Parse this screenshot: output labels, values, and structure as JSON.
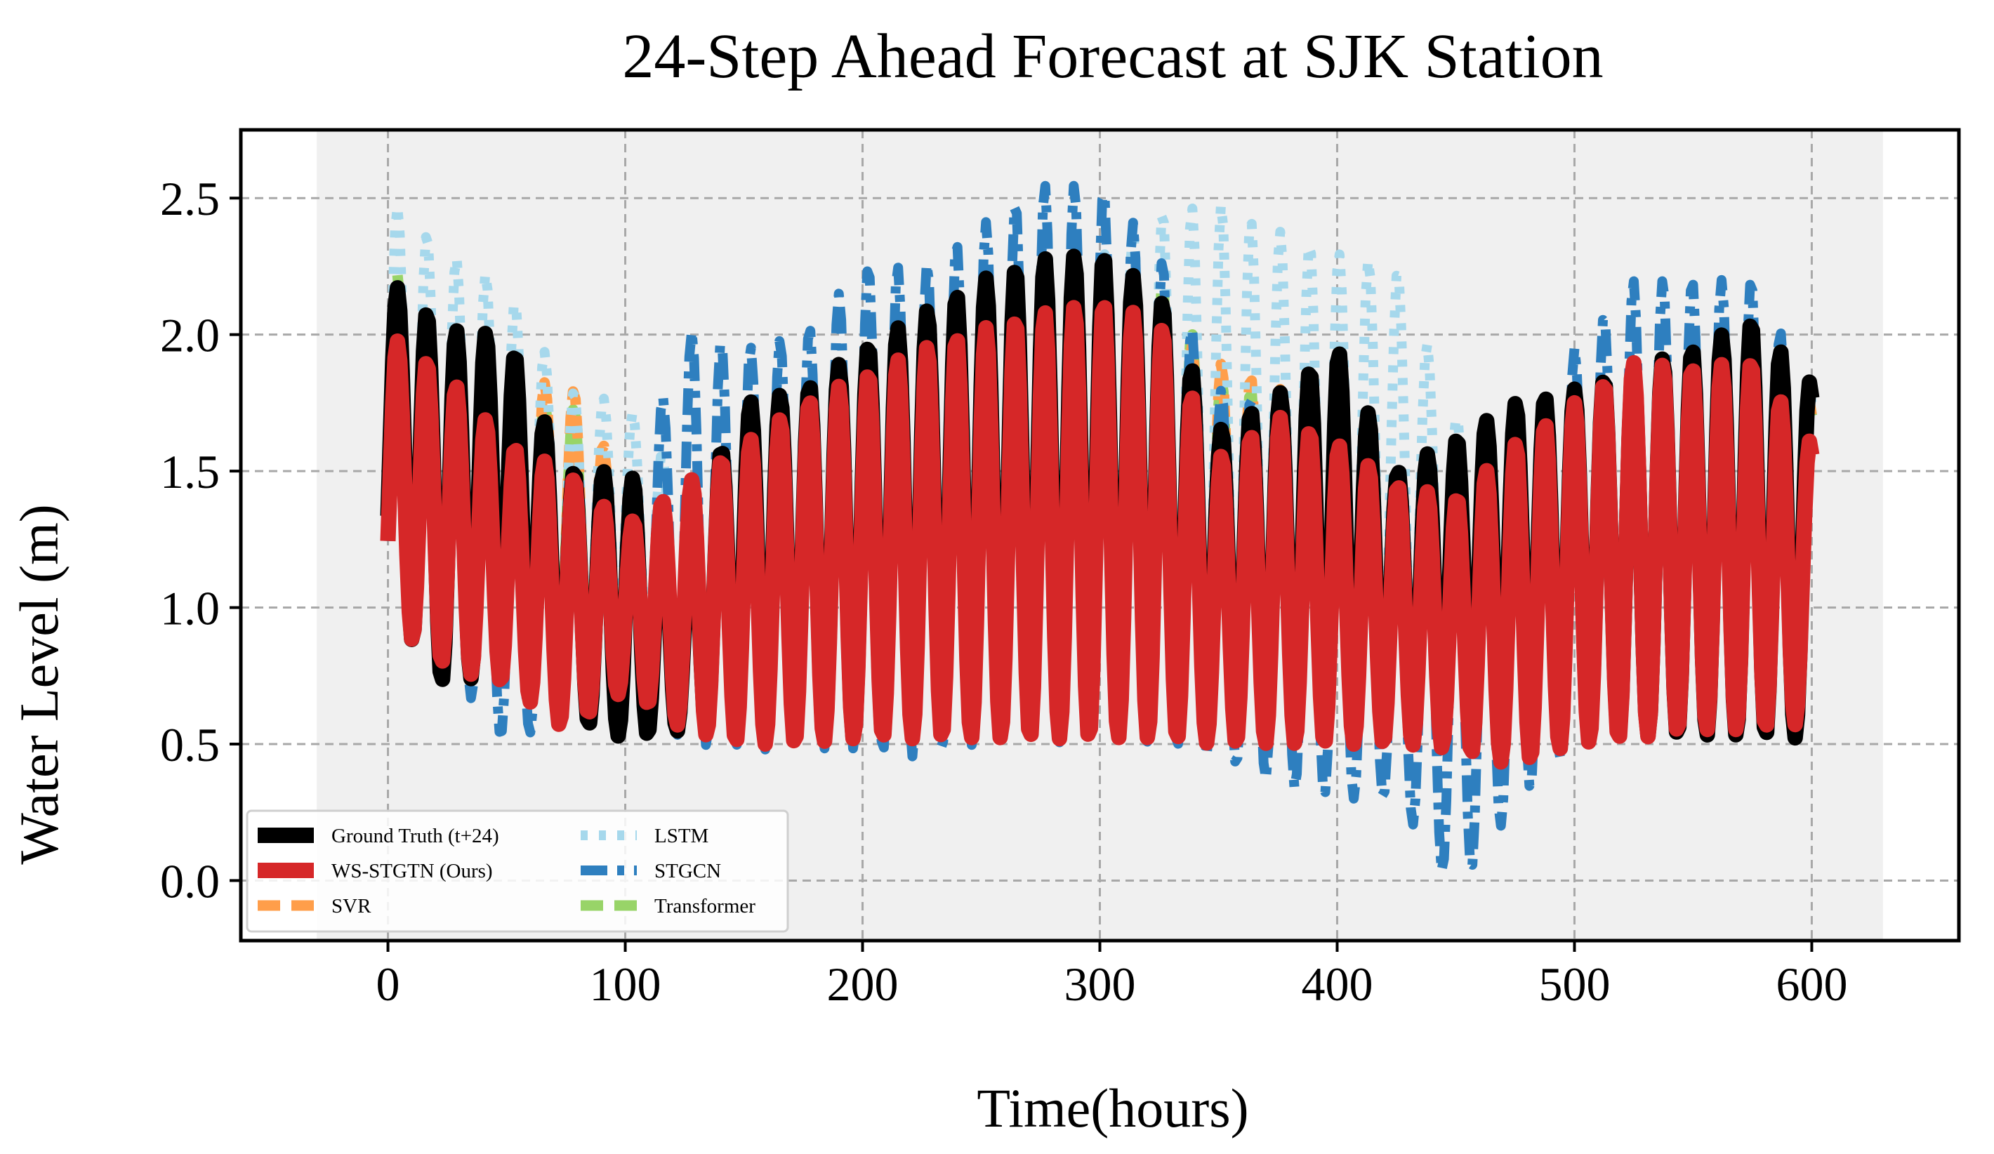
{
  "chart_data": {
    "type": "line",
    "title": "24-Step Ahead Forecast at SJK Station",
    "xlabel": "Time(hours)",
    "ylabel": "Water Level (m)",
    "xlim": [
      -62,
      662
    ],
    "ylim": [
      -0.22,
      2.75
    ],
    "xticks": [
      0,
      100,
      200,
      300,
      400,
      500,
      600
    ],
    "xtick_labels": [
      "0",
      "100",
      "200",
      "300",
      "400",
      "500",
      "600"
    ],
    "yticks": [
      0.0,
      0.5,
      1.0,
      1.5,
      2.0,
      2.5
    ],
    "ytick_labels": [
      "0.0",
      "0.5",
      "1.0",
      "1.5",
      "2.0",
      "2.5"
    ],
    "grid": true,
    "shaded_region_x": [
      -30,
      630
    ],
    "period_hours": 12.4,
    "n_points": 601,
    "legend_position": "lower-left",
    "series": [
      {
        "name": "Ground Truth (t+24)",
        "color": "#000000",
        "style": "solid",
        "peaks": [
          [
            0,
            2.2
          ],
          [
            25,
            2.02
          ],
          [
            50,
            2.0
          ],
          [
            75,
            1.5
          ],
          [
            100,
            1.5
          ],
          [
            125,
            1.3
          ],
          [
            150,
            1.75
          ],
          [
            175,
            1.8
          ],
          [
            200,
            1.95
          ],
          [
            225,
            2.08
          ],
          [
            250,
            2.2
          ],
          [
            275,
            2.28
          ],
          [
            300,
            2.3
          ],
          [
            325,
            2.15
          ],
          [
            350,
            1.65
          ],
          [
            375,
            1.78
          ],
          [
            400,
            1.95
          ],
          [
            425,
            1.5
          ],
          [
            450,
            1.62
          ],
          [
            475,
            1.75
          ],
          [
            500,
            1.8
          ],
          [
            525,
            1.88
          ],
          [
            550,
            1.95
          ],
          [
            575,
            2.05
          ],
          [
            600,
            1.82
          ]
        ],
        "troughs": [
          [
            0,
            1.0
          ],
          [
            25,
            0.7
          ],
          [
            50,
            0.8
          ],
          [
            75,
            0.6
          ],
          [
            100,
            0.52
          ],
          [
            125,
            0.55
          ],
          [
            150,
            0.55
          ],
          [
            175,
            0.52
          ],
          [
            200,
            0.52
          ],
          [
            225,
            0.55
          ],
          [
            250,
            0.55
          ],
          [
            275,
            0.55
          ],
          [
            300,
            0.56
          ],
          [
            325,
            0.55
          ],
          [
            350,
            0.55
          ],
          [
            375,
            0.53
          ],
          [
            400,
            0.55
          ],
          [
            425,
            0.52
          ],
          [
            450,
            0.55
          ],
          [
            475,
            0.55
          ],
          [
            500,
            0.53
          ],
          [
            525,
            0.53
          ],
          [
            550,
            0.53
          ],
          [
            575,
            0.53
          ],
          [
            600,
            0.52
          ]
        ]
      },
      {
        "name": "WS-STGTN (Ours)",
        "color": "#d62728",
        "style": "solid",
        "peaks": [
          [
            0,
            2.0
          ],
          [
            25,
            1.85
          ],
          [
            50,
            1.6
          ],
          [
            75,
            1.5
          ],
          [
            100,
            1.3
          ],
          [
            125,
            1.45
          ],
          [
            150,
            1.6
          ],
          [
            175,
            1.75
          ],
          [
            200,
            1.85
          ],
          [
            225,
            1.95
          ],
          [
            250,
            2.02
          ],
          [
            275,
            2.08
          ],
          [
            300,
            2.12
          ],
          [
            325,
            2.05
          ],
          [
            350,
            1.55
          ],
          [
            375,
            1.7
          ],
          [
            400,
            1.6
          ],
          [
            425,
            1.45
          ],
          [
            450,
            1.4
          ],
          [
            475,
            1.6
          ],
          [
            500,
            1.75
          ],
          [
            525,
            1.9
          ],
          [
            550,
            1.88
          ],
          [
            575,
            1.9
          ],
          [
            600,
            1.6
          ]
        ],
        "troughs": [
          [
            0,
            0.95
          ],
          [
            25,
            0.78
          ],
          [
            50,
            0.72
          ],
          [
            75,
            0.55
          ],
          [
            100,
            0.7
          ],
          [
            125,
            0.55
          ],
          [
            150,
            0.5
          ],
          [
            175,
            0.5
          ],
          [
            200,
            0.52
          ],
          [
            225,
            0.52
          ],
          [
            250,
            0.52
          ],
          [
            275,
            0.52
          ],
          [
            300,
            0.52
          ],
          [
            325,
            0.52
          ],
          [
            350,
            0.5
          ],
          [
            375,
            0.5
          ],
          [
            400,
            0.5
          ],
          [
            425,
            0.5
          ],
          [
            450,
            0.48
          ],
          [
            475,
            0.42
          ],
          [
            500,
            0.5
          ],
          [
            525,
            0.52
          ],
          [
            550,
            0.55
          ],
          [
            575,
            0.55
          ],
          [
            600,
            0.58
          ]
        ]
      },
      {
        "name": "SVR",
        "color": "#ff9e4a",
        "style": "dashed",
        "peaks": [
          [
            0,
            2.05
          ],
          [
            25,
            1.9
          ],
          [
            50,
            1.78
          ],
          [
            75,
            1.85
          ],
          [
            100,
            1.45
          ],
          [
            125,
            1.35
          ],
          [
            150,
            1.6
          ],
          [
            175,
            1.7
          ],
          [
            200,
            1.85
          ],
          [
            225,
            1.95
          ],
          [
            250,
            2.05
          ],
          [
            275,
            2.1
          ],
          [
            300,
            2.15
          ],
          [
            325,
            2.05
          ],
          [
            350,
            1.9
          ],
          [
            375,
            1.8
          ],
          [
            400,
            1.8
          ],
          [
            425,
            1.5
          ],
          [
            450,
            1.4
          ],
          [
            475,
            1.65
          ],
          [
            500,
            1.75
          ],
          [
            525,
            1.85
          ],
          [
            550,
            1.9
          ],
          [
            575,
            1.95
          ],
          [
            600,
            1.75
          ]
        ],
        "troughs": [
          [
            0,
            1.0
          ],
          [
            25,
            0.85
          ],
          [
            50,
            0.85
          ],
          [
            75,
            0.8
          ],
          [
            100,
            0.8
          ],
          [
            125,
            0.7
          ],
          [
            150,
            0.6
          ],
          [
            175,
            0.6
          ],
          [
            200,
            0.6
          ],
          [
            225,
            0.6
          ],
          [
            250,
            0.6
          ],
          [
            275,
            0.62
          ],
          [
            300,
            0.62
          ],
          [
            325,
            0.6
          ],
          [
            350,
            0.6
          ],
          [
            375,
            0.6
          ],
          [
            400,
            0.6
          ],
          [
            425,
            0.6
          ],
          [
            450,
            0.6
          ],
          [
            475,
            0.58
          ],
          [
            500,
            0.58
          ],
          [
            525,
            0.58
          ],
          [
            550,
            0.58
          ],
          [
            575,
            0.58
          ],
          [
            600,
            0.6
          ]
        ]
      },
      {
        "name": "LSTM",
        "color": "#a6d8ec",
        "style": "dotted",
        "peaks": [
          [
            0,
            2.5
          ],
          [
            25,
            2.3
          ],
          [
            50,
            2.18
          ],
          [
            75,
            1.8
          ],
          [
            100,
            1.75
          ],
          [
            125,
            1.45
          ],
          [
            150,
            1.6
          ],
          [
            175,
            1.75
          ],
          [
            200,
            1.9
          ],
          [
            225,
            2.0
          ],
          [
            250,
            2.1
          ],
          [
            275,
            2.2
          ],
          [
            300,
            2.3
          ],
          [
            325,
            2.45
          ],
          [
            350,
            2.48
          ],
          [
            375,
            2.38
          ],
          [
            400,
            2.3
          ],
          [
            425,
            2.25
          ],
          [
            450,
            1.7
          ],
          [
            475,
            1.65
          ],
          [
            500,
            1.75
          ],
          [
            525,
            1.85
          ],
          [
            550,
            1.95
          ],
          [
            575,
            2.0
          ],
          [
            600,
            1.8
          ]
        ],
        "troughs": [
          [
            0,
            1.0
          ],
          [
            25,
            0.9
          ],
          [
            50,
            0.88
          ],
          [
            75,
            0.85
          ],
          [
            100,
            0.9
          ],
          [
            125,
            0.8
          ],
          [
            150,
            0.7
          ],
          [
            175,
            0.65
          ],
          [
            200,
            0.62
          ],
          [
            225,
            0.62
          ],
          [
            250,
            0.62
          ],
          [
            275,
            0.62
          ],
          [
            300,
            0.62
          ],
          [
            325,
            0.62
          ],
          [
            350,
            0.62
          ],
          [
            375,
            0.65
          ],
          [
            400,
            0.68
          ],
          [
            425,
            0.75
          ],
          [
            450,
            0.75
          ],
          [
            475,
            0.7
          ],
          [
            500,
            0.65
          ],
          [
            525,
            0.62
          ],
          [
            550,
            0.6
          ],
          [
            575,
            0.6
          ],
          [
            600,
            0.6
          ]
        ]
      },
      {
        "name": "STGCN",
        "color": "#2e7fbf",
        "style": "dashdot",
        "peaks": [
          [
            0,
            2.0
          ],
          [
            25,
            1.8
          ],
          [
            50,
            1.6
          ],
          [
            75,
            1.3
          ],
          [
            100,
            1.35
          ],
          [
            125,
            2.02
          ],
          [
            150,
            1.95
          ],
          [
            175,
            2.0
          ],
          [
            200,
            2.25
          ],
          [
            225,
            2.25
          ],
          [
            250,
            2.4
          ],
          [
            275,
            2.55
          ],
          [
            300,
            2.55
          ],
          [
            325,
            2.3
          ],
          [
            350,
            1.8
          ],
          [
            375,
            1.75
          ],
          [
            400,
            1.65
          ],
          [
            425,
            1.4
          ],
          [
            450,
            1.5
          ],
          [
            475,
            1.6
          ],
          [
            500,
            1.95
          ],
          [
            525,
            2.2
          ],
          [
            550,
            2.2
          ],
          [
            575,
            2.2
          ],
          [
            600,
            1.8
          ]
        ],
        "troughs": [
          [
            0,
            0.95
          ],
          [
            25,
            0.78
          ],
          [
            50,
            0.5
          ],
          [
            75,
            0.6
          ],
          [
            100,
            0.75
          ],
          [
            125,
            0.5
          ],
          [
            150,
            0.48
          ],
          [
            175,
            0.48
          ],
          [
            200,
            0.48
          ],
          [
            225,
            0.45
          ],
          [
            250,
            0.5
          ],
          [
            275,
            0.5
          ],
          [
            300,
            0.52
          ],
          [
            325,
            0.5
          ],
          [
            350,
            0.45
          ],
          [
            375,
            0.35
          ],
          [
            400,
            0.3
          ],
          [
            425,
            0.3
          ],
          [
            450,
            -0.05
          ],
          [
            475,
            0.28
          ],
          [
            500,
            0.5
          ],
          [
            525,
            0.52
          ],
          [
            550,
            0.52
          ],
          [
            575,
            0.52
          ],
          [
            600,
            0.55
          ]
        ]
      },
      {
        "name": "Transformer",
        "color": "#98d468",
        "style": "dashed",
        "peaks": [
          [
            0,
            2.28
          ],
          [
            25,
            1.9
          ],
          [
            50,
            1.7
          ],
          [
            75,
            1.78
          ],
          [
            100,
            1.4
          ],
          [
            125,
            1.35
          ],
          [
            150,
            1.6
          ],
          [
            175,
            1.7
          ],
          [
            200,
            1.85
          ],
          [
            225,
            1.95
          ],
          [
            250,
            2.05
          ],
          [
            275,
            2.1
          ],
          [
            300,
            2.18
          ],
          [
            325,
            2.2
          ],
          [
            350,
            1.85
          ],
          [
            375,
            1.75
          ],
          [
            400,
            1.72
          ],
          [
            425,
            1.5
          ],
          [
            450,
            1.4
          ],
          [
            475,
            1.6
          ],
          [
            500,
            1.72
          ],
          [
            525,
            1.85
          ],
          [
            550,
            1.9
          ],
          [
            575,
            1.95
          ],
          [
            600,
            1.75
          ]
        ],
        "troughs": [
          [
            0,
            1.0
          ],
          [
            25,
            0.88
          ],
          [
            50,
            0.85
          ],
          [
            75,
            0.85
          ],
          [
            100,
            0.9
          ],
          [
            125,
            0.75
          ],
          [
            150,
            0.62
          ],
          [
            175,
            0.6
          ],
          [
            200,
            0.6
          ],
          [
            225,
            0.6
          ],
          [
            250,
            0.6
          ],
          [
            275,
            0.62
          ],
          [
            300,
            0.62
          ],
          [
            325,
            0.62
          ],
          [
            350,
            0.6
          ],
          [
            375,
            0.6
          ],
          [
            400,
            0.6
          ],
          [
            425,
            0.6
          ],
          [
            450,
            0.6
          ],
          [
            475,
            0.58
          ],
          [
            500,
            0.58
          ],
          [
            525,
            0.58
          ],
          [
            550,
            0.58
          ],
          [
            575,
            0.58
          ],
          [
            600,
            0.58
          ]
        ]
      }
    ],
    "plot_order": [
      "Transformer",
      "SVR",
      "LSTM",
      "STGCN",
      "Ground Truth (t+24)",
      "WS-STGTN (Ours)"
    ]
  }
}
